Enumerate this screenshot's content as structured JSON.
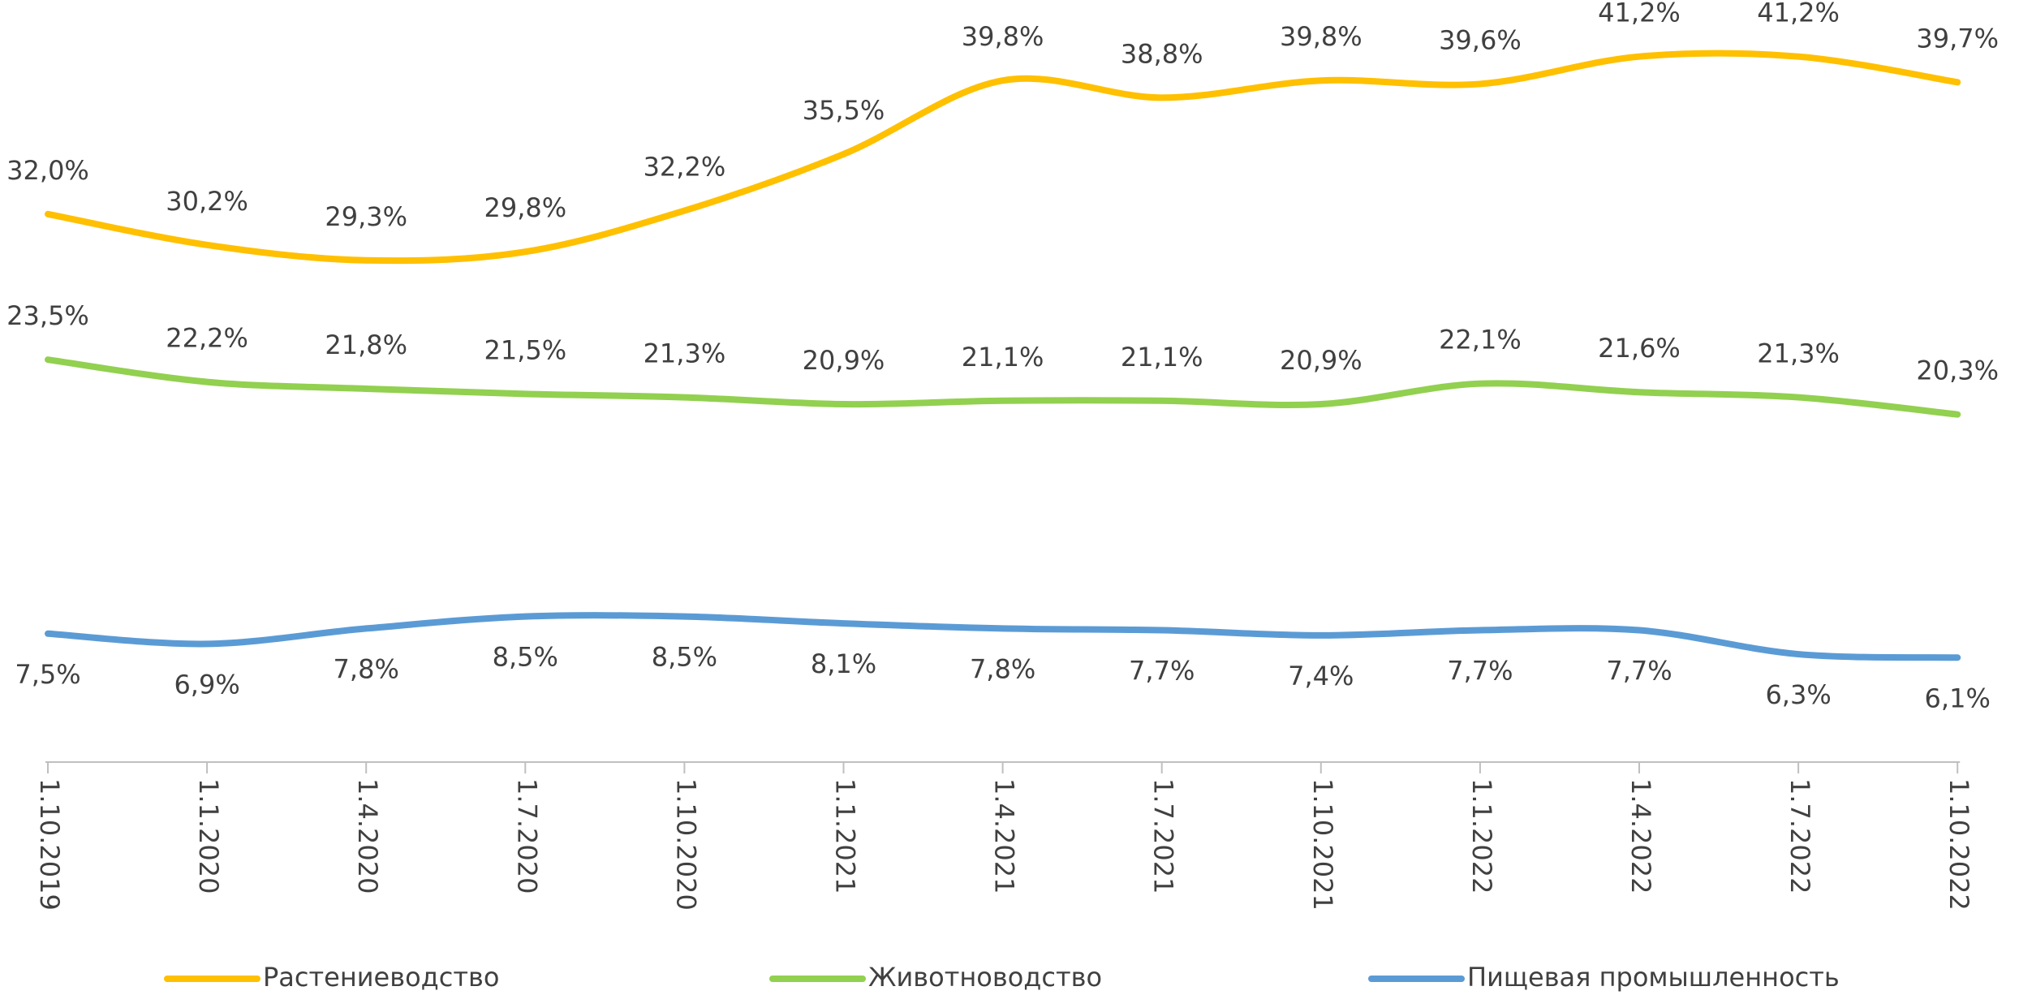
{
  "chart_data": {
    "type": "line",
    "categories": [
      "1.10.2019",
      "1.1.2020",
      "1.4.2020",
      "1.7.2020",
      "1.10.2020",
      "1.1.2021",
      "1.4.2021",
      "1.7.2021",
      "1.10.2021",
      "1.1.2022",
      "1.4.2022",
      "1.7.2022",
      "1.10.2022"
    ],
    "series": [
      {
        "name": "Растениеводство",
        "color": "#FFC000",
        "values": [
          32.0,
          30.2,
          29.3,
          29.8,
          32.2,
          35.5,
          39.8,
          38.8,
          39.8,
          39.6,
          41.2,
          41.2,
          39.7
        ],
        "value_labels": [
          "32,0%",
          "30,2%",
          "29,3%",
          "29,8%",
          "32,2%",
          "35,5%",
          "39,8%",
          "38,8%",
          "39,8%",
          "39,6%",
          "41,2%",
          "41,2%",
          "39,7%"
        ]
      },
      {
        "name": "Животноводство",
        "color": "#92D050",
        "values": [
          23.5,
          22.2,
          21.8,
          21.5,
          21.3,
          20.9,
          21.1,
          21.1,
          20.9,
          22.1,
          21.6,
          21.3,
          20.3
        ],
        "value_labels": [
          "23,5%",
          "22,2%",
          "21,8%",
          "21,5%",
          "21,3%",
          "20,9%",
          "21,1%",
          "21,1%",
          "20,9%",
          "22,1%",
          "21,6%",
          "21,3%",
          "20,3%"
        ]
      },
      {
        "name": "Пищевая промышленность",
        "color": "#5B9BD5",
        "values": [
          7.5,
          6.9,
          7.8,
          8.5,
          8.5,
          8.1,
          7.8,
          7.7,
          7.4,
          7.7,
          7.7,
          6.3,
          6.1
        ],
        "value_labels": [
          "7,5%",
          "6,9%",
          "7,8%",
          "8,5%",
          "8,5%",
          "8,1%",
          "7,8%",
          "7,7%",
          "7,4%",
          "7,7%",
          "7,7%",
          "6,3%",
          "6,1%"
        ]
      }
    ]
  }
}
